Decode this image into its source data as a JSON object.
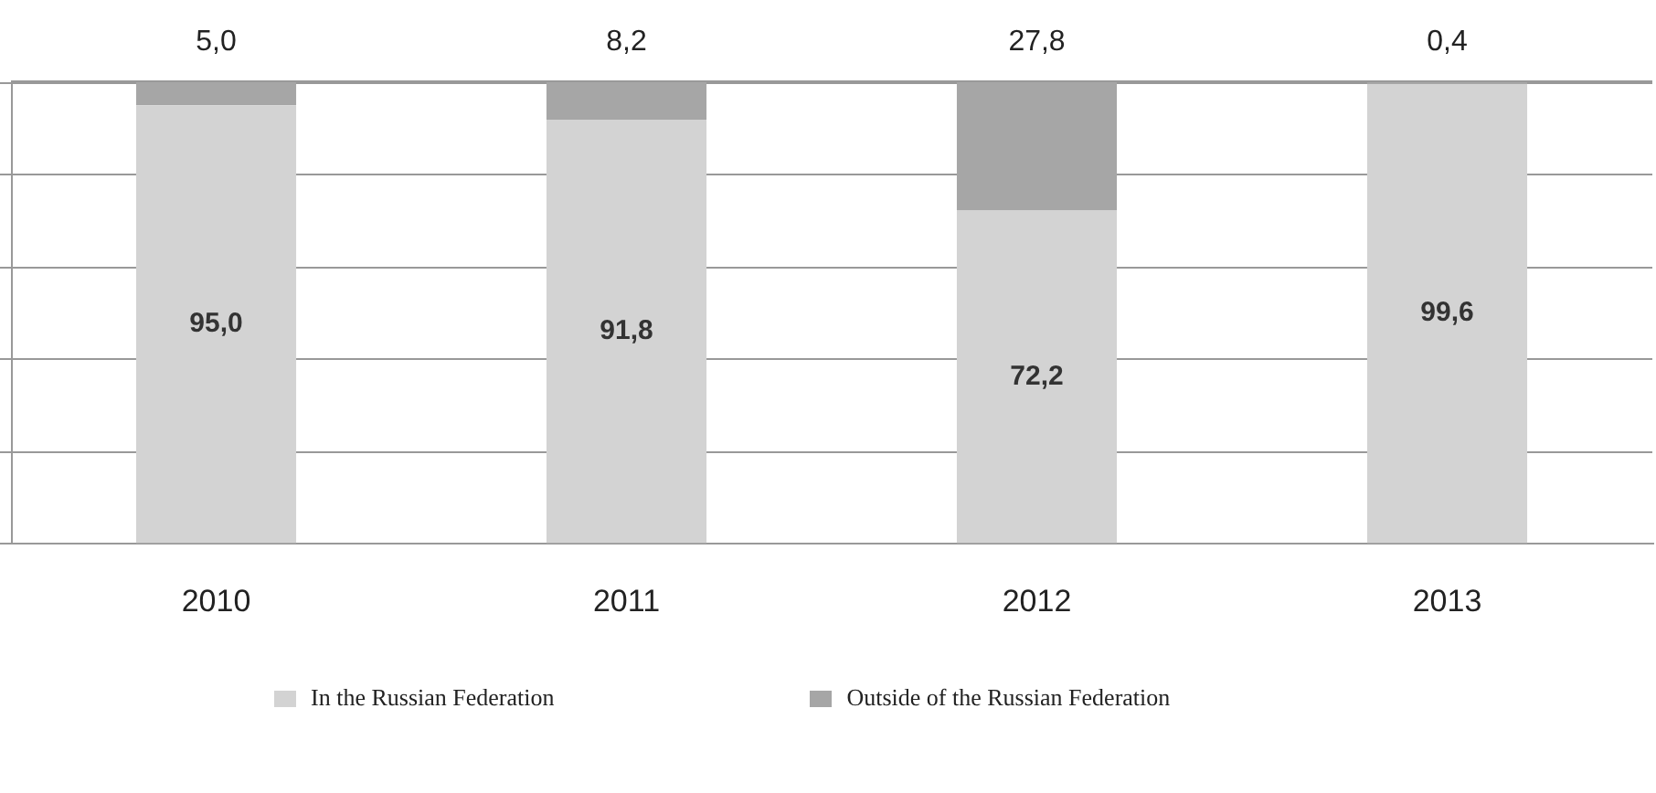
{
  "chart_data": {
    "type": "bar",
    "stacked": true,
    "categories": [
      "2010",
      "2011",
      "2012",
      "2013"
    ],
    "series": [
      {
        "name": "In the Russian Federation",
        "color": "#d3d3d3",
        "values": [
          95.0,
          91.8,
          72.2,
          99.6
        ],
        "value_labels": [
          "95,0",
          "91,8",
          "72,2",
          "99,6"
        ]
      },
      {
        "name": "Outside of the Russian Federation",
        "color": "#a6a6a6",
        "values": [
          5.0,
          8.2,
          27.8,
          0.4
        ],
        "value_labels": [
          "5,0",
          "8,2",
          "27,8",
          "0,4"
        ]
      }
    ],
    "tick_labels": "x",
    "grid": "y",
    "legend": "bottom"
  }
}
